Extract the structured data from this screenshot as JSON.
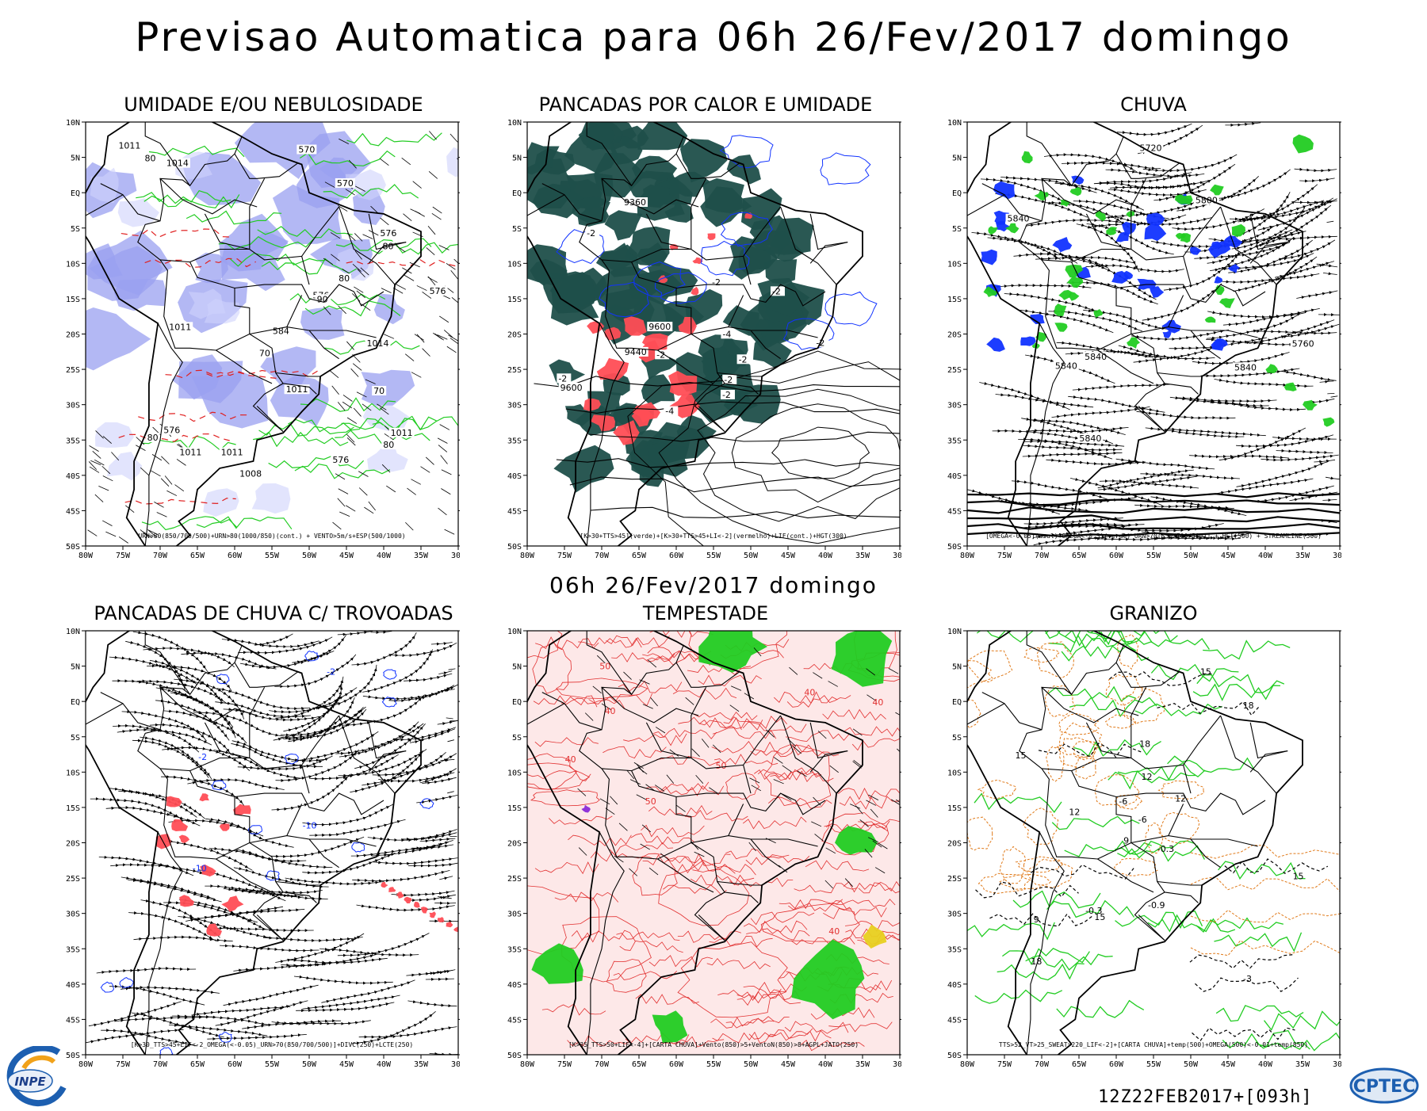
{
  "header": {
    "title": "Previsao Automatica  para 06h 26/Fev/2017 domingo",
    "mid_title": "06h 26/Fev/2017 domingo"
  },
  "axis": {
    "lat_labels": [
      "10N",
      "5N",
      "EQ",
      "5S",
      "10S",
      "15S",
      "20S",
      "25S",
      "30S",
      "35S",
      "40S",
      "45S",
      "50S"
    ],
    "lon_labels": [
      "80W",
      "75W",
      "70W",
      "65W",
      "60W",
      "55W",
      "50W",
      "45W",
      "40W",
      "35W",
      "30W"
    ]
  },
  "panels": [
    {
      "id": "umidade",
      "title": "UMIDADE E/OU NEBULOSIDADE",
      "legend": "URN>80(850/700/500)+URN>80(1000/850)(cont.) + VENTO>5m/s+ESP(500/1000)",
      "labels": [
        "1011",
        "1011",
        "1011",
        "1011",
        "1011",
        "1011",
        "1008",
        "1014",
        "1014",
        "576",
        "576",
        "576",
        "576",
        "576",
        "570",
        "570",
        "584",
        "80",
        "80",
        "70",
        "90",
        "80",
        "70",
        "80",
        "80"
      ]
    },
    {
      "id": "pancadas_calor",
      "title": "PANCADAS POR CALOR E UMIDADE",
      "legend": "[K>30+TTS>45](verde)+[K>30+TTS>45+LI<-2](vermelho)+LIF(cont.)+HGT(300)",
      "labels": [
        "9600",
        "9600",
        "9440",
        "9360",
        "-2",
        "-4",
        "-2",
        "-2",
        "-4",
        "-2",
        "-2",
        "-2",
        "-2",
        "-2",
        "-2"
      ]
    },
    {
      "id": "chuva",
      "title": "CHUVA",
      "legend": "[OMEGA<-0.05](azul)+OMEGA<-0.3)(verde)_URN>70(850/700/500)] + HGT(500) + STREAMLINE(500)",
      "labels": [
        "5840",
        "5840",
        "5840",
        "5840",
        "5840",
        "5800",
        "5760",
        "5720"
      ]
    },
    {
      "id": "trovoadas",
      "title": "PANCADAS DE CHUVA C/ TROVOADAS",
      "legend": "[K>30_TTS>45+LIF<-2_OMEGA(<-0.05)_URN>70(850/700/500)]+DIVC(250)+LCTE(250)",
      "labels": [
        "-2",
        "-2",
        "-10",
        "-10"
      ]
    },
    {
      "id": "tempestade",
      "title": "TEMPESTADE",
      "legend": "[K>35_TTS>50+LIF<-4]+[CARTA CHUVA]+Vento(850)>5+VentoN(850)>8+AGPL+JATO(250)",
      "labels": [
        "50",
        "40",
        "40",
        "50",
        "40",
        "40",
        "40",
        "50"
      ]
    },
    {
      "id": "granizo",
      "title": "GRANIZO",
      "legend": "TTS>52_VT>25_SWEAT>220_LIF<-2]+[CARTA CHUVA]+temp(500)+OMEGA(500)<-0.01+temp(850)",
      "labels": [
        "18",
        "15",
        "15",
        "15",
        "18",
        "18",
        "15",
        "12",
        "12",
        "12",
        "9",
        "9",
        "-6",
        "-6",
        "-3",
        "-0.3",
        "-0.9",
        "-0.3"
      ]
    }
  ],
  "footer": {
    "run": "12Z22FEB2017+[093h]",
    "logo_left": "INPE",
    "logo_right": "CPTEC"
  },
  "colors": {
    "wet_fill": "#9aa0f0",
    "heat_fill": "#1f4f4a",
    "red_fill": "#ff4d55",
    "green": "#22cc22",
    "blue": "#1133ff",
    "orange": "#e07a1a",
    "yellow": "#e8d020"
  }
}
